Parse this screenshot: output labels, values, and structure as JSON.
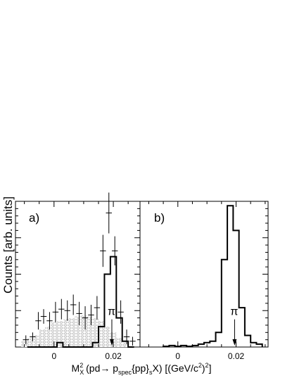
{
  "ylabel": "Counts [arb. units]",
  "xlabel": {
    "pre": "M",
    "sub1": "X",
    "sup1": "2",
    "mid1": " (pd",
    "arrow": "→",
    "mid2": " p",
    "sub2": "spec",
    "mid3": "{pp}",
    "sub3": "s",
    "mid4": "X) [(GeV/c",
    "sup2": "2",
    "mid5": ")",
    "sup3": "2",
    "end": "]"
  },
  "chart_data": [
    {
      "panel_label": "a)",
      "type": "histogram",
      "xlim": [
        -0.013,
        0.029
      ],
      "ylim": [
        0,
        100
      ],
      "x_ticks": [
        0,
        0.02
      ],
      "x_tick_labels": [
        "0",
        "0.02"
      ],
      "annotation": {
        "text": "π",
        "x": 0.0195,
        "y_text": 22,
        "arrow_from": 19,
        "arrow_to": 1
      },
      "error_points": {
        "x": [
          -0.0095,
          -0.0072,
          -0.0053,
          -0.0035,
          -0.0015,
          0.0005,
          0.0025,
          0.0045,
          0.0065,
          0.0085,
          0.0105,
          0.0125,
          0.0145,
          0.0165,
          0.0185,
          0.0205,
          0.0225,
          0.0245,
          0.0265
        ],
        "y": [
          5,
          7,
          18,
          21,
          18,
          24,
          26,
          25,
          29,
          23,
          20,
          22,
          27,
          66,
          92,
          66,
          24,
          7,
          4
        ],
        "yerr": [
          3,
          3,
          6,
          5,
          6,
          7,
          7,
          7,
          7,
          8,
          8,
          7,
          8,
          11,
          14,
          10,
          8,
          5,
          3
        ]
      },
      "shaded_histogram": {
        "edges": [
          -0.011,
          -0.009,
          -0.007,
          -0.005,
          -0.003,
          -0.001,
          0.001,
          0.003,
          0.005,
          0.007,
          0.009,
          0.011,
          0.013,
          0.015,
          0.017,
          0.019,
          0.021,
          0.023,
          0.025
        ],
        "values": [
          4,
          6,
          8,
          12,
          14,
          17,
          18,
          19,
          20,
          21,
          22,
          21,
          20,
          18,
          14,
          10,
          6,
          3
        ]
      },
      "step_histogram": {
        "edges": [
          -0.009,
          0.001,
          0.003,
          0.005,
          0.007,
          0.009,
          0.011,
          0.013,
          0.015,
          0.017,
          0.019,
          0.021,
          0.023,
          0.025,
          0.027
        ],
        "values": [
          0,
          3,
          0,
          0,
          0,
          0,
          0,
          3,
          14,
          50,
          62,
          20,
          4,
          0
        ]
      }
    },
    {
      "panel_label": "b)",
      "type": "histogram",
      "xlim": [
        -0.013,
        0.031
      ],
      "ylim": [
        0,
        100
      ],
      "x_ticks": [
        0,
        0.02
      ],
      "x_tick_labels": [
        "0",
        "0.02"
      ],
      "annotation": {
        "text": "π",
        "superscript": "-",
        "x": 0.0195,
        "y_text": 22,
        "arrow_from": 19,
        "arrow_to": 1
      },
      "step_histogram": {
        "edges": [
          -0.005,
          -0.003,
          -0.001,
          0.001,
          0.003,
          0.005,
          0.007,
          0.009,
          0.011,
          0.013,
          0.015,
          0.017,
          0.019,
          0.021,
          0.023,
          0.025,
          0.027,
          0.029
        ],
        "values": [
          0.5,
          1,
          0.5,
          1,
          0.5,
          1,
          2,
          3,
          4,
          10,
          60,
          97,
          80,
          27,
          8,
          3,
          2
        ]
      }
    }
  ]
}
